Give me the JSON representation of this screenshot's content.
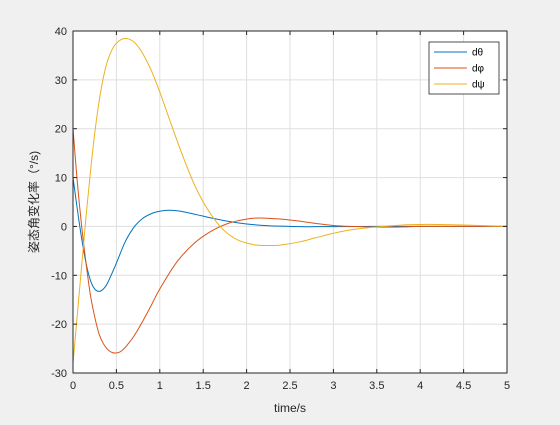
{
  "chart_data": {
    "type": "line",
    "xlabel": "time/s",
    "ylabel": "姿态角变化率（°/s)",
    "xlim": [
      0,
      5
    ],
    "ylim": [
      -30,
      40
    ],
    "xticks": [
      0,
      0.5,
      1,
      1.5,
      2,
      2.5,
      3,
      3.5,
      4,
      4.5,
      5
    ],
    "xtick_labels": [
      "0",
      "0.5",
      "1",
      "1.5",
      "2",
      "2.5",
      "3",
      "3.5",
      "4",
      "4.5",
      "5"
    ],
    "yticks": [
      -30,
      -20,
      -10,
      0,
      10,
      20,
      30,
      40
    ],
    "ytick_labels": [
      "-30",
      "-20",
      "-10",
      "0",
      "10",
      "20",
      "30",
      "40"
    ],
    "grid": true,
    "legend_position": "top-right",
    "series": [
      {
        "name": "dθ",
        "color": "#0072BD",
        "x": [
          0,
          0.05,
          0.1,
          0.15,
          0.2,
          0.25,
          0.3,
          0.35,
          0.4,
          0.5,
          0.6,
          0.7,
          0.8,
          0.9,
          1.0,
          1.1,
          1.2,
          1.3,
          1.4,
          1.5,
          1.6,
          1.8,
          2.0,
          2.2,
          2.4,
          2.6,
          2.8,
          3.0,
          3.5,
          4.0,
          4.5,
          5.0
        ],
        "y": [
          10,
          3.5,
          -2.5,
          -7.5,
          -11,
          -12.8,
          -13.3,
          -12.8,
          -11.5,
          -7.5,
          -3.2,
          -0.2,
          1.6,
          2.6,
          3.1,
          3.3,
          3.2,
          2.9,
          2.5,
          2.1,
          1.7,
          1.0,
          0.5,
          0.2,
          0.05,
          -0.05,
          -0.05,
          -0.05,
          0,
          0,
          0,
          0
        ]
      },
      {
        "name": "dφ",
        "color": "#D95319",
        "x": [
          0,
          0.05,
          0.1,
          0.15,
          0.2,
          0.25,
          0.3,
          0.35,
          0.4,
          0.45,
          0.5,
          0.55,
          0.6,
          0.7,
          0.8,
          0.9,
          1.0,
          1.2,
          1.4,
          1.6,
          1.8,
          2.0,
          2.1,
          2.2,
          2.4,
          2.6,
          2.8,
          3.0,
          3.2,
          3.5,
          3.8,
          4.0,
          4.5,
          5.0
        ],
        "y": [
          20,
          9,
          0,
          -7.5,
          -14,
          -18.5,
          -22,
          -24,
          -25.2,
          -25.8,
          -25.9,
          -25.6,
          -24.8,
          -22.5,
          -19.5,
          -16.2,
          -12.8,
          -7.2,
          -3.4,
          -0.9,
          0.7,
          1.5,
          1.7,
          1.7,
          1.5,
          1.1,
          0.6,
          0.2,
          0,
          -0.15,
          -0.1,
          0,
          0,
          0
        ]
      },
      {
        "name": "dψ",
        "color": "#EDB120",
        "x": [
          0,
          0.05,
          0.1,
          0.15,
          0.2,
          0.25,
          0.3,
          0.35,
          0.4,
          0.45,
          0.5,
          0.55,
          0.6,
          0.65,
          0.7,
          0.75,
          0.8,
          0.9,
          1.0,
          1.1,
          1.2,
          1.3,
          1.4,
          1.5,
          1.6,
          1.7,
          1.8,
          1.9,
          2.0,
          2.1,
          2.2,
          2.3,
          2.4,
          2.6,
          2.8,
          3.0,
          3.2,
          3.5,
          3.8,
          4.0,
          4.2,
          4.5,
          5.0
        ],
        "y": [
          -28,
          -18,
          -8,
          2,
          11,
          19,
          25.5,
          30.5,
          34,
          36.2,
          37.5,
          38.2,
          38.5,
          38.3,
          37.8,
          36.8,
          35.5,
          32,
          27.5,
          22.5,
          17.5,
          12.8,
          8.5,
          5.0,
          2.2,
          -0.1,
          -1.7,
          -2.8,
          -3.4,
          -3.8,
          -3.9,
          -3.9,
          -3.8,
          -3.2,
          -2.3,
          -1.4,
          -0.7,
          -0.1,
          0.3,
          0.4,
          0.4,
          0.3,
          0
        ]
      }
    ]
  }
}
